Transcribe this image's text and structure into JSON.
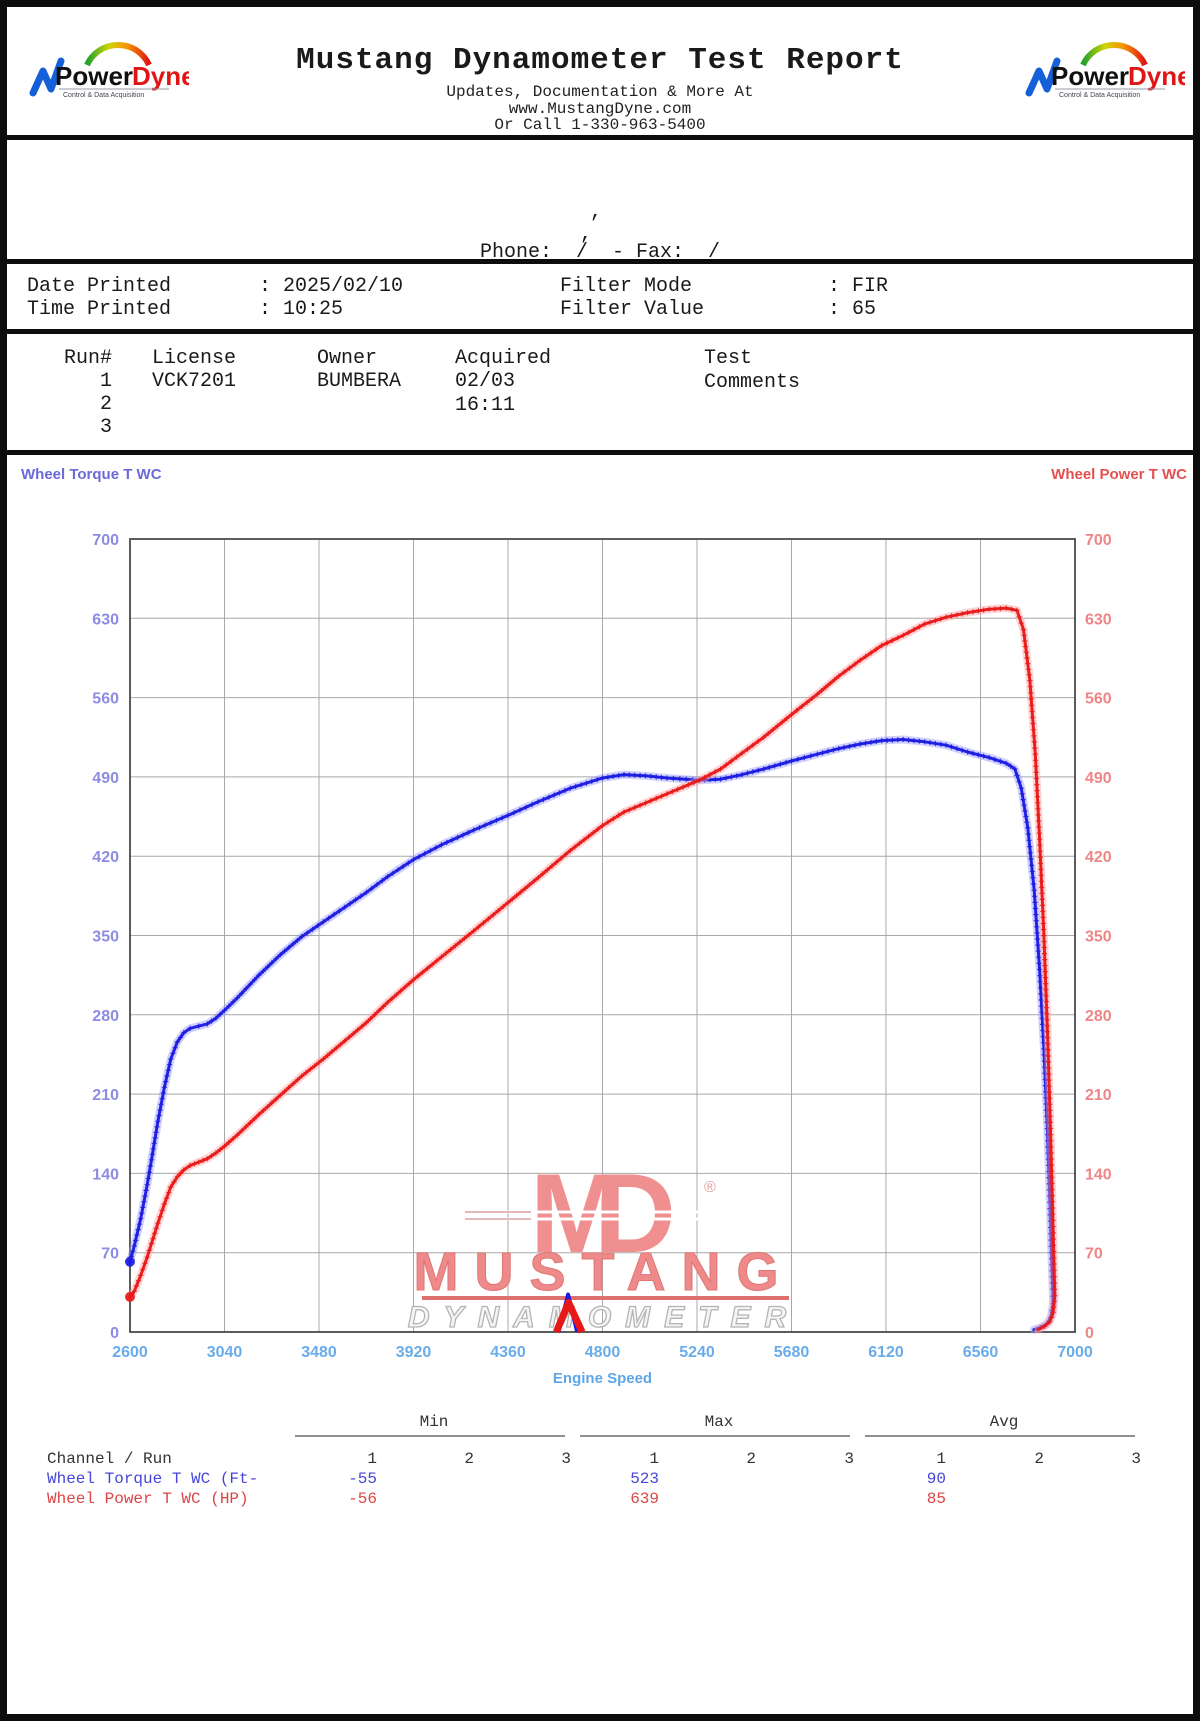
{
  "header": {
    "title": "Mustang Dynamometer Test Report",
    "sub1": "Updates, Documentation & More At",
    "sub2": "www.MustangDyne.com",
    "sub3": "Or Call 1-330-963-5400",
    "logo": {
      "power": "Power",
      "dyne": "Dyne",
      "tagline": "Control & Data Acquisition"
    }
  },
  "customer": {
    "line1": ",",
    "line2": ",",
    "phone_line": "Phone:  /  - Fax:  /"
  },
  "meta": {
    "date_label": "Date Printed",
    "date_value": ": 2025/02/10",
    "time_label": "Time Printed",
    "time_value": ": 10:25",
    "filter_mode_label": "Filter Mode",
    "filter_mode_value": ": FIR",
    "filter_value_label": "Filter Value",
    "filter_value_value": ": 65"
  },
  "runs": {
    "headers": {
      "run": "Run#",
      "license": "License",
      "owner": "Owner",
      "acquired": "Acquired",
      "comments": "Test Comments"
    },
    "rows": [
      {
        "num": "1",
        "license": "VCK7201",
        "owner": "BUMBERA",
        "acquired": "02/03 16:11",
        "comments": ""
      },
      {
        "num": "2",
        "license": "",
        "owner": "",
        "acquired": "",
        "comments": ""
      },
      {
        "num": "3",
        "license": "",
        "owner": "",
        "acquired": "",
        "comments": ""
      }
    ]
  },
  "chart_data": {
    "type": "line",
    "title_left": "Wheel Torque T WC",
    "title_right": "Wheel Power T WC",
    "xlabel": "Engine Speed",
    "xlim": [
      2600,
      7000
    ],
    "ylim": [
      0,
      700
    ],
    "x_ticks": [
      2600,
      3040,
      3480,
      3920,
      4360,
      4800,
      5240,
      5680,
      6120,
      6560,
      7000
    ],
    "y_ticks": [
      0,
      70,
      140,
      210,
      280,
      350,
      420,
      490,
      560,
      630,
      700
    ],
    "grid": true,
    "colors": {
      "torque": "#1a1ae0",
      "torque_halo": "#9a9aff",
      "power": "#e81818",
      "power_halo": "#ffa0a0",
      "left_ticks": "#8c8ce2",
      "right_ticks": "#ef8585",
      "x_ticks": "#69ace9",
      "left_title": "#6a6ad8",
      "right_title": "#e45050",
      "x_title": "#5ea6e6"
    },
    "series": [
      {
        "name": "Wheel Torque T WC (Ft-lb)",
        "axis": "left",
        "points": [
          [
            2600,
            62
          ],
          [
            2620,
            76
          ],
          [
            2650,
            100
          ],
          [
            2680,
            130
          ],
          [
            2700,
            152
          ],
          [
            2730,
            186
          ],
          [
            2760,
            216
          ],
          [
            2790,
            241
          ],
          [
            2820,
            256
          ],
          [
            2850,
            264
          ],
          [
            2880,
            268
          ],
          [
            2920,
            270
          ],
          [
            2960,
            272
          ],
          [
            3000,
            277
          ],
          [
            3040,
            284
          ],
          [
            3100,
            295
          ],
          [
            3200,
            315
          ],
          [
            3300,
            333
          ],
          [
            3400,
            349
          ],
          [
            3500,
            362
          ],
          [
            3600,
            375
          ],
          [
            3700,
            388
          ],
          [
            3800,
            402
          ],
          [
            3920,
            417
          ],
          [
            4050,
            430
          ],
          [
            4200,
            443
          ],
          [
            4360,
            456
          ],
          [
            4500,
            468
          ],
          [
            4650,
            480
          ],
          [
            4800,
            489
          ],
          [
            4900,
            492
          ],
          [
            5000,
            491
          ],
          [
            5100,
            489
          ],
          [
            5250,
            487
          ],
          [
            5350,
            488
          ],
          [
            5450,
            492
          ],
          [
            5550,
            497
          ],
          [
            5680,
            504
          ],
          [
            5800,
            510
          ],
          [
            5900,
            515
          ],
          [
            6000,
            519
          ],
          [
            6100,
            522
          ],
          [
            6200,
            523
          ],
          [
            6300,
            521
          ],
          [
            6400,
            518
          ],
          [
            6500,
            512
          ],
          [
            6600,
            507
          ],
          [
            6680,
            502
          ],
          [
            6720,
            497
          ],
          [
            6750,
            480
          ],
          [
            6780,
            445
          ],
          [
            6810,
            390
          ],
          [
            6835,
            320
          ],
          [
            6855,
            250
          ],
          [
            6870,
            185
          ],
          [
            6882,
            120
          ],
          [
            6890,
            70
          ],
          [
            6896,
            38
          ],
          [
            6898,
            25
          ],
          [
            6888,
            13
          ],
          [
            6868,
            7
          ],
          [
            6838,
            4
          ],
          [
            6808,
            2
          ]
        ]
      },
      {
        "name": "Wheel Power T WC (HP)",
        "axis": "right",
        "points": [
          [
            2600,
            31
          ],
          [
            2620,
            36
          ],
          [
            2650,
            50
          ],
          [
            2680,
            66
          ],
          [
            2700,
            78
          ],
          [
            2730,
            96
          ],
          [
            2760,
            113
          ],
          [
            2790,
            128
          ],
          [
            2820,
            137
          ],
          [
            2850,
            143
          ],
          [
            2880,
            147
          ],
          [
            2920,
            150
          ],
          [
            2960,
            153
          ],
          [
            3000,
            158
          ],
          [
            3040,
            164
          ],
          [
            3100,
            174
          ],
          [
            3200,
            192
          ],
          [
            3300,
            209
          ],
          [
            3400,
            226
          ],
          [
            3500,
            241
          ],
          [
            3600,
            257
          ],
          [
            3700,
            273
          ],
          [
            3800,
            291
          ],
          [
            3920,
            311
          ],
          [
            4050,
            331
          ],
          [
            4200,
            354
          ],
          [
            4360,
            379
          ],
          [
            4500,
            401
          ],
          [
            4650,
            425
          ],
          [
            4800,
            447
          ],
          [
            4900,
            459
          ],
          [
            5000,
            467
          ],
          [
            5100,
            475
          ],
          [
            5250,
            487
          ],
          [
            5350,
            497
          ],
          [
            5450,
            511
          ],
          [
            5550,
            525
          ],
          [
            5680,
            545
          ],
          [
            5800,
            563
          ],
          [
            5900,
            579
          ],
          [
            6000,
            593
          ],
          [
            6100,
            606
          ],
          [
            6200,
            615
          ],
          [
            6300,
            625
          ],
          [
            6400,
            631
          ],
          [
            6500,
            635
          ],
          [
            6600,
            638
          ],
          [
            6680,
            639
          ],
          [
            6730,
            637
          ],
          [
            6760,
            620
          ],
          [
            6790,
            575
          ],
          [
            6815,
            510
          ],
          [
            6835,
            435
          ],
          [
            6855,
            350
          ],
          [
            6872,
            265
          ],
          [
            6885,
            185
          ],
          [
            6895,
            115
          ],
          [
            6902,
            60
          ],
          [
            6906,
            32
          ],
          [
            6898,
            17
          ],
          [
            6882,
            9
          ],
          [
            6858,
            5
          ],
          [
            6828,
            2
          ]
        ]
      }
    ],
    "artifact_spikes": [
      {
        "series": "torque",
        "points": [
          [
            4595,
            0
          ],
          [
            4640,
            33
          ],
          [
            4682,
            0
          ]
        ]
      },
      {
        "series": "power",
        "points": [
          [
            4585,
            0
          ],
          [
            4642,
            26
          ],
          [
            4705,
            0
          ]
        ]
      }
    ],
    "stats": {
      "torque": {
        "min": -55,
        "max": 523,
        "avg": 90
      },
      "power": {
        "min": -56,
        "max": 639,
        "avg": 85
      }
    }
  },
  "watermark": {
    "m": "M",
    "d": "D",
    "reg": "®",
    "name": "MUSTANG",
    "sub": "DYNAMOMETER"
  },
  "summary": {
    "group_headers": [
      "Min",
      "Max",
      "Avg"
    ],
    "row_header": "Channel / Run",
    "run_cols": [
      "1",
      "2",
      "3",
      "1",
      "2",
      "3",
      "1",
      "2",
      "3"
    ],
    "rows": [
      {
        "label": "Wheel Torque T WC (Ft-",
        "color": "blue",
        "values": [
          "-55",
          "",
          "",
          "523",
          "",
          "",
          "90",
          "",
          ""
        ]
      },
      {
        "label": "Wheel Power T WC (HP)",
        "color": "red",
        "values": [
          "-56",
          "",
          "",
          "639",
          "",
          "",
          "85",
          "",
          ""
        ]
      }
    ]
  }
}
